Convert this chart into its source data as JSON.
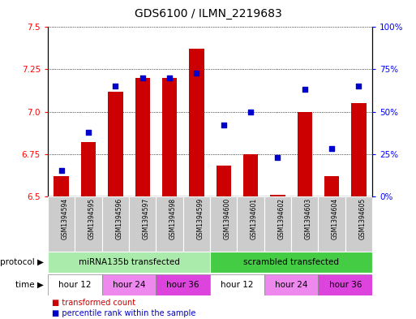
{
  "title": "GDS6100 / ILMN_2219683",
  "samples": [
    "GSM1394594",
    "GSM1394595",
    "GSM1394596",
    "GSM1394597",
    "GSM1394598",
    "GSM1394599",
    "GSM1394600",
    "GSM1394601",
    "GSM1394602",
    "GSM1394603",
    "GSM1394604",
    "GSM1394605"
  ],
  "bar_values": [
    6.62,
    6.82,
    7.12,
    7.2,
    7.2,
    7.37,
    6.68,
    6.75,
    6.51,
    7.0,
    6.62,
    7.05
  ],
  "percentile_values": [
    15,
    38,
    65,
    70,
    70,
    73,
    42,
    50,
    23,
    63,
    28,
    65
  ],
  "ymin": 6.5,
  "ymax": 7.5,
  "yticks": [
    6.5,
    6.75,
    7.0,
    7.25,
    7.5
  ],
  "right_yticks": [
    0,
    25,
    50,
    75,
    100
  ],
  "right_yticklabels": [
    "0%",
    "25%",
    "50%",
    "75%",
    "100%"
  ],
  "bar_color": "#cc0000",
  "dot_color": "#0000cc",
  "protocol_groups": [
    {
      "label": "miRNA135b transfected",
      "start": 0,
      "end": 5,
      "color": "#aaeaaa"
    },
    {
      "label": "scrambled transfected",
      "start": 6,
      "end": 11,
      "color": "#44cc44"
    }
  ],
  "time_groups": [
    {
      "label": "hour 12",
      "start": 0,
      "end": 1,
      "color": "#ffffff"
    },
    {
      "label": "hour 24",
      "start": 2,
      "end": 3,
      "color": "#ee88ee"
    },
    {
      "label": "hour 36",
      "start": 4,
      "end": 5,
      "color": "#dd44dd"
    },
    {
      "label": "hour 12",
      "start": 6,
      "end": 7,
      "color": "#ffffff"
    },
    {
      "label": "hour 24",
      "start": 8,
      "end": 9,
      "color": "#ee88ee"
    },
    {
      "label": "hour 36",
      "start": 10,
      "end": 11,
      "color": "#dd44dd"
    }
  ],
  "legend_items": [
    {
      "label": "transformed count",
      "color": "#cc0000"
    },
    {
      "label": "percentile rank within the sample",
      "color": "#0000cc"
    }
  ],
  "bg_color": "#ffffff",
  "sample_bg_color": "#cccccc",
  "fig_width": 5.13,
  "fig_height": 3.93,
  "dpi": 100
}
